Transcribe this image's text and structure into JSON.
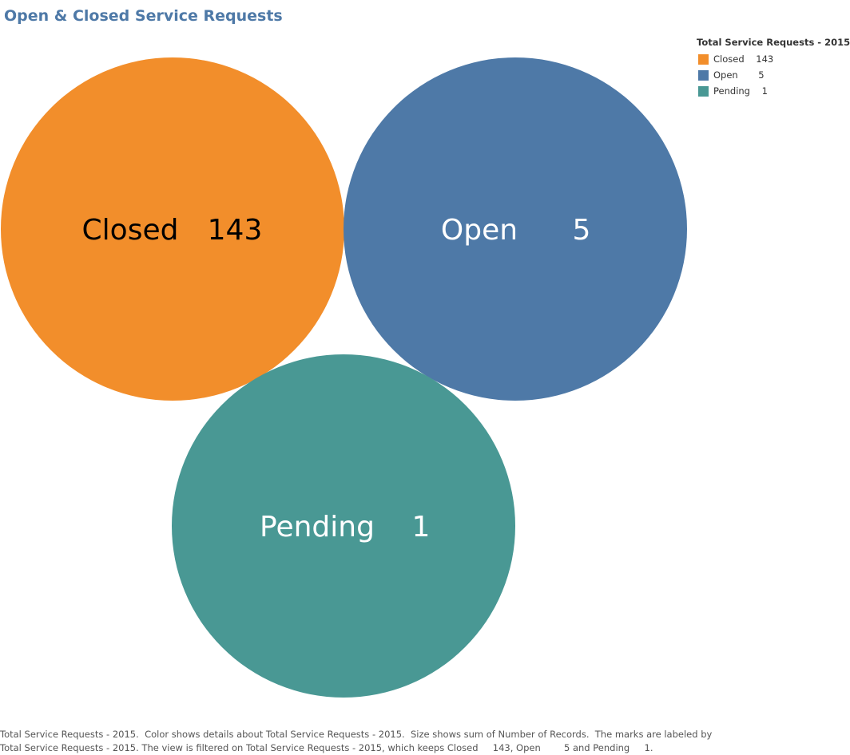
{
  "title": "Open & Closed Service Requests",
  "legend": {
    "title": "Total Service Requests - 2015",
    "items": [
      {
        "label": "Closed    143",
        "color": "#f28e2b"
      },
      {
        "label": "Open       5",
        "color": "#4e79a7"
      },
      {
        "label": "Pending    1",
        "color": "#499894"
      }
    ]
  },
  "chart_data": {
    "type": "bubble",
    "title": "Open & Closed Service Requests",
    "dimension": "Total Service Requests - 2015",
    "measure": "Number of Records",
    "series": [
      {
        "category": "Closed",
        "value": 143,
        "label_name": "Closed",
        "label_value": "143",
        "color": "#f28e2b",
        "label_color": "#000000"
      },
      {
        "category": "Open",
        "value": 5,
        "label_name": "Open",
        "label_value": "5",
        "color": "#4e79a7",
        "label_color": "#ffffff"
      },
      {
        "category": "Pending",
        "value": 1,
        "label_name": "Pending",
        "label_value": "1",
        "color": "#499894",
        "label_color": "#ffffff"
      }
    ],
    "legend_position": "top-right"
  },
  "caption": {
    "line1": "Total Service Requests - 2015.  Color shows details about Total Service Requests - 2015.  Size shows sum of Number of Records.  The marks are labeled by",
    "line2": "Total Service Requests - 2015. The view is filtered on Total Service Requests - 2015, which keeps Closed     143, Open        5 and Pending     1."
  }
}
